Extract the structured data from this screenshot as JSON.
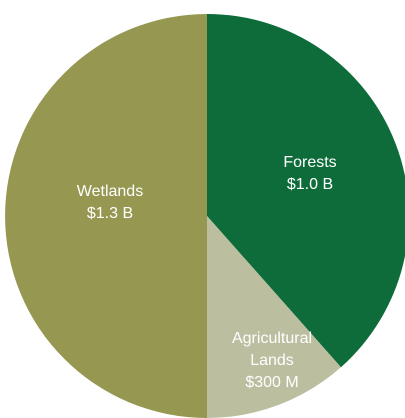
{
  "chart_data": {
    "type": "pie",
    "title": "",
    "slices": [
      {
        "label_lines": [
          "Forests"
        ],
        "value_label": "$1.0 B",
        "value": 1.0,
        "color": "#0e6c3b"
      },
      {
        "label_lines": [
          "Agricultural",
          "Lands"
        ],
        "value_label": "$300 M",
        "value": 0.3,
        "color": "#bcbea0"
      },
      {
        "label_lines": [
          "Wetlands"
        ],
        "value_label": "$1.3 B",
        "value": 1.3,
        "color": "#969750"
      }
    ],
    "units": "USD billions",
    "legend": "none (labels inside slices)"
  }
}
